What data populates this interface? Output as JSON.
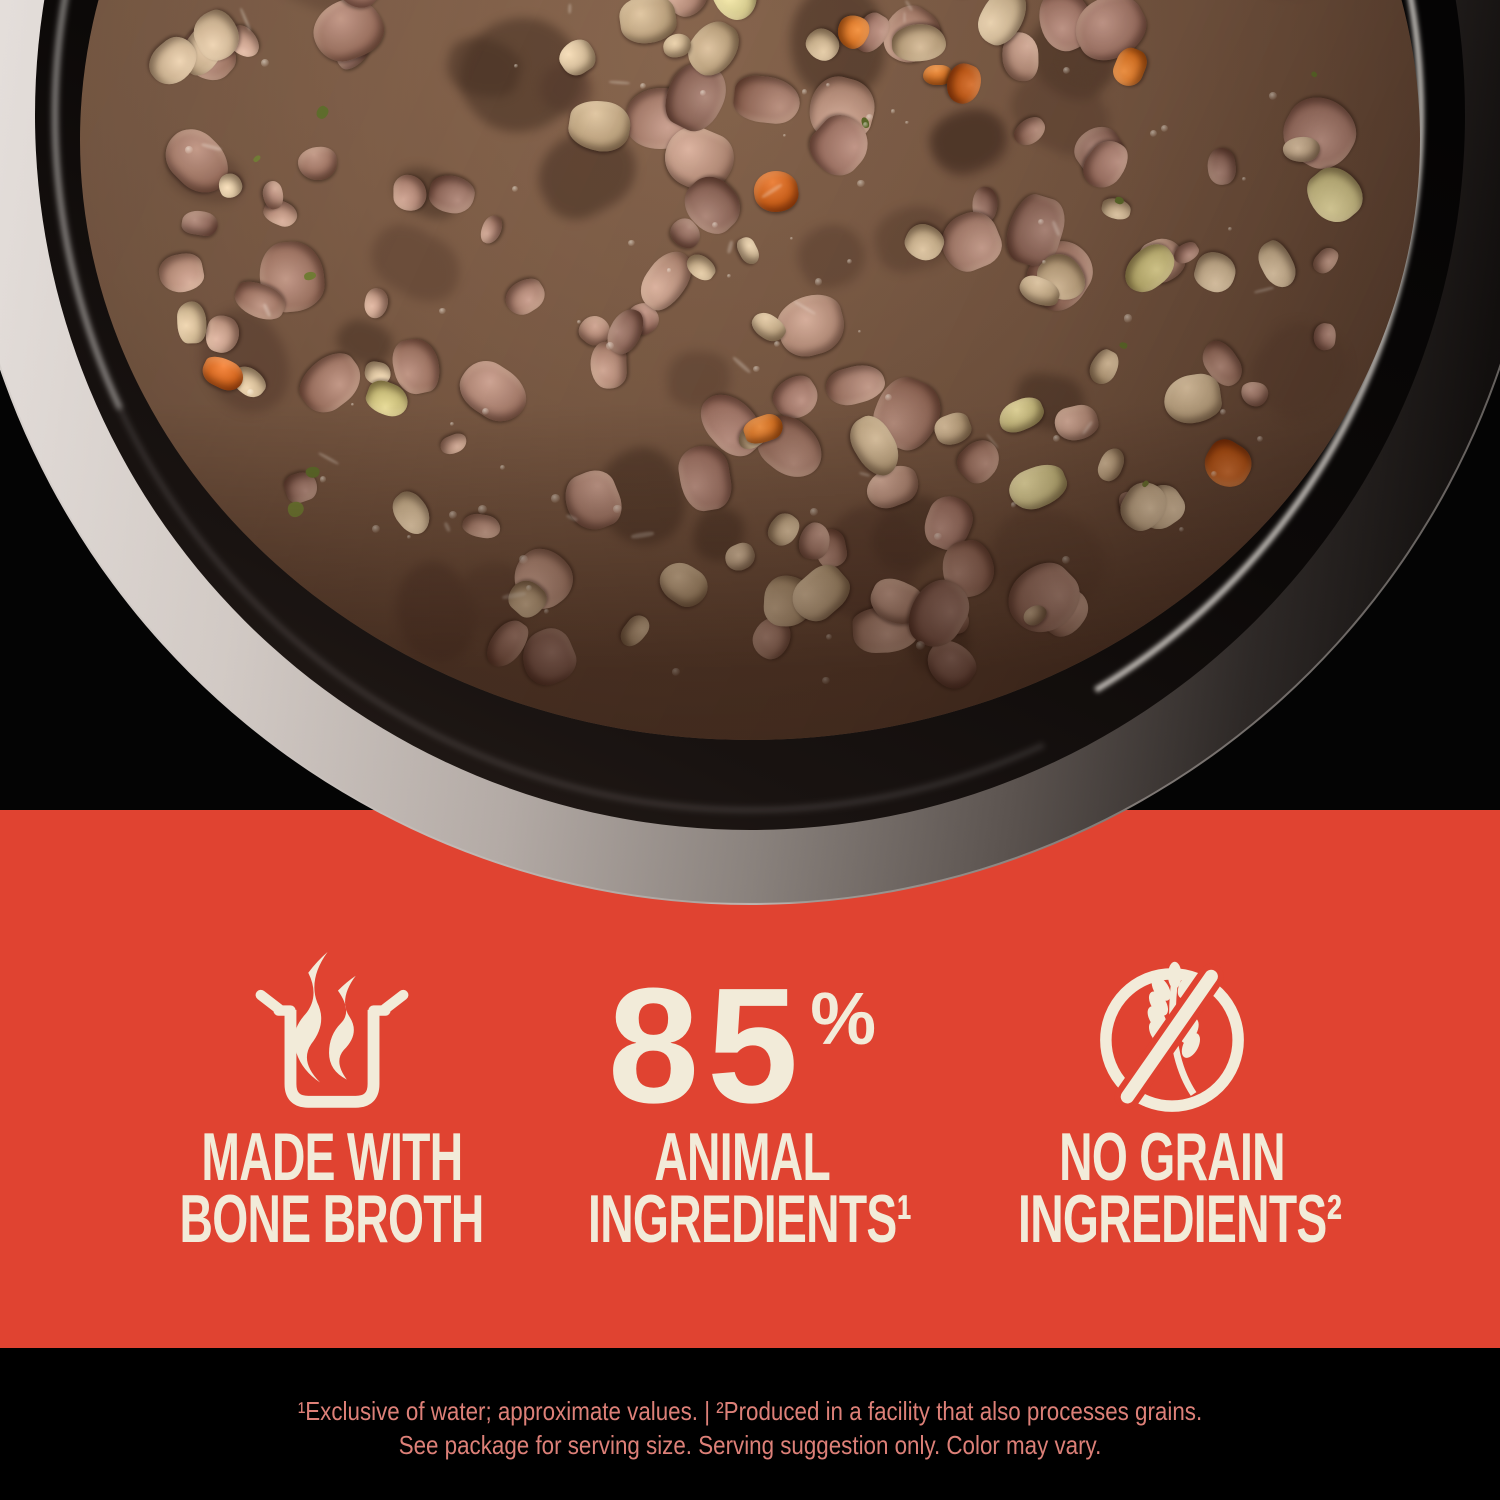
{
  "image_type": "pet-food product infographic",
  "photo": {
    "alt": "Top-down view of a dark glossy bowl filled with chunky meat stew, carrots and potatoes in bone broth on a black background",
    "palette": {
      "broth_base": [
        "#7a5a44",
        "#6b4d3a"
      ],
      "meat": [
        "#ab8170",
        "#b28875",
        "#9c7261",
        "#bd9480",
        "#a5796a",
        "#8f685a"
      ],
      "cream_chunk": [
        "#c9af8e",
        "#d3bb97",
        "#bfa581",
        "#cbb28d"
      ],
      "carrot": [
        "#d2641c",
        "#e07724",
        "#c25915"
      ],
      "potato": [
        "#cfc383",
        "#d9ce90",
        "#c5b976"
      ],
      "herb": [
        "#6f7a33",
        "#5d6b2a"
      ],
      "dark_broth": [
        "#5e4232",
        "#54392c",
        "#463023"
      ]
    },
    "texture": {
      "dark_blobs": 40,
      "meat_chunks": 130,
      "cream_chunks": 70,
      "carrot_chunks": 14,
      "potato_chunks": 9,
      "herb_flecks": 16,
      "shine_streaks": 28,
      "bubbles": 85
    }
  },
  "panel": {
    "background": "#e04331",
    "text_color": "#f2ebd9",
    "features": [
      {
        "icon": "steaming-pot-icon",
        "line1": "MADE WITH",
        "line2": "BONE BROTH"
      },
      {
        "stat_value": "85",
        "stat_unit": "%",
        "line1": "ANIMAL",
        "line2": "INGREDIENTS¹"
      },
      {
        "icon": "no-grain-icon",
        "line1": "NO GRAIN",
        "line2": "INGREDIENTS²"
      }
    ]
  },
  "fine_print": {
    "color": "#dd8078",
    "line1": "¹Exclusive of water; approximate values. | ²Produced in a facility that also processes grains.",
    "line2": "See package for serving size. Serving suggestion only. Color may vary."
  }
}
